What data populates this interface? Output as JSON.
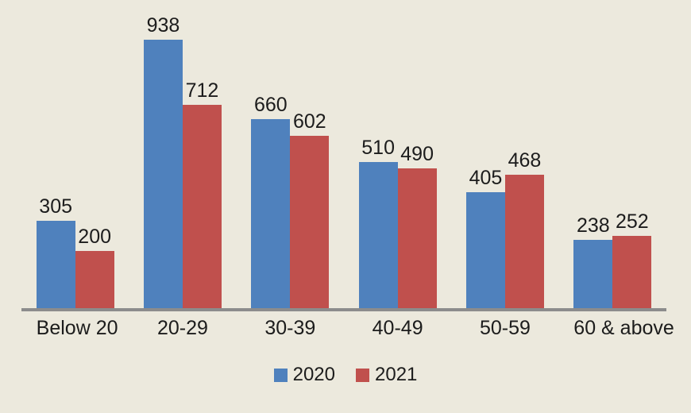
{
  "chart_data": {
    "type": "bar",
    "title": "",
    "categories": [
      "Below 20",
      "20-29",
      "30-39",
      "40-49",
      "50-59",
      "60 & above"
    ],
    "series": [
      {
        "name": "2020",
        "color": "#4F81BD",
        "values": [
          305,
          938,
          660,
          510,
          405,
          238
        ]
      },
      {
        "name": "2021",
        "color": "#C0504D",
        "values": [
          200,
          712,
          602,
          490,
          468,
          252
        ]
      }
    ],
    "ylim": [
      0,
      1000
    ],
    "grid": false,
    "data_labels": true,
    "legend_position": "bottom",
    "xlabel": "",
    "ylabel": ""
  },
  "colors": {
    "background": "#ECE9DD",
    "axis_line": "#8C8C8C",
    "label_text": "#1C1C1C"
  }
}
